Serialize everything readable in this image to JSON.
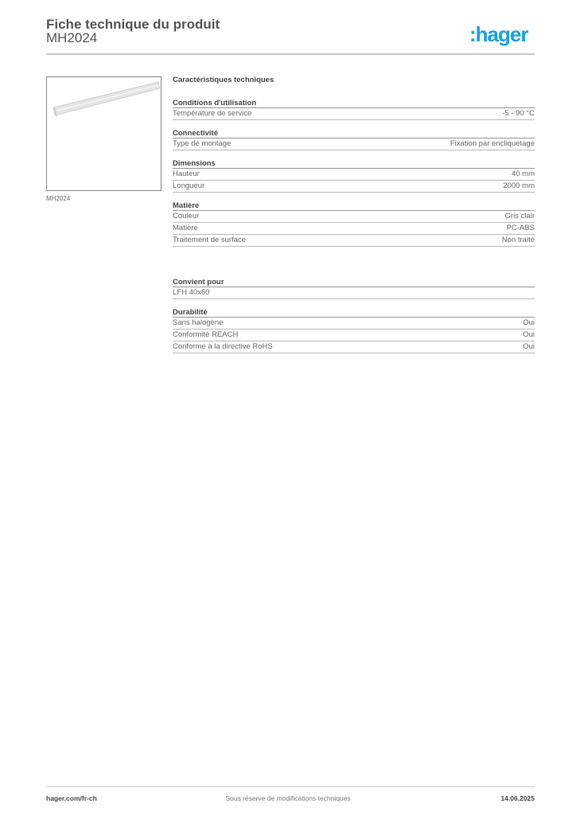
{
  "header": {
    "title": "Fiche technique du produit",
    "product_code": "MH2024",
    "logo": ":hager",
    "logo_color": "#1aa0e0"
  },
  "image": {
    "caption": "MH2024"
  },
  "specs": {
    "heading": "Caractéristiques techniques",
    "groups": [
      {
        "title": "Conditions d'utilisation",
        "rows": [
          {
            "label": "Température de service",
            "value": "-5 - 90 °C"
          }
        ]
      },
      {
        "title": "Connectivité",
        "rows": [
          {
            "label": "Type de montage",
            "value": "Fixation par encliquetage"
          }
        ]
      },
      {
        "title": "Dimensions",
        "rows": [
          {
            "label": "Hauteur",
            "value": "40 mm"
          },
          {
            "label": "Longueur",
            "value": "2000 mm"
          }
        ]
      },
      {
        "title": "Matière",
        "rows": [
          {
            "label": "Couleur",
            "value": "Gris clair"
          },
          {
            "label": "Matière",
            "value": "PC-ABS"
          },
          {
            "label": "Traitement de surface",
            "value": "Non traité"
          }
        ]
      },
      {
        "title": "Convient pour",
        "rows": [
          {
            "label": "LFH 40x60",
            "value": ""
          }
        ]
      },
      {
        "title": "Durabilité",
        "rows": [
          {
            "label": "Sans halogène",
            "value": "Oui"
          },
          {
            "label": "Conformité REACH",
            "value": "Oui"
          },
          {
            "label": "Conforme à la directive RoHS",
            "value": "Oui"
          }
        ]
      }
    ]
  },
  "footer": {
    "url": "hager.com/fr-ch",
    "note": "Sous réserve de modifications techniques",
    "date": "14.06.2025"
  }
}
